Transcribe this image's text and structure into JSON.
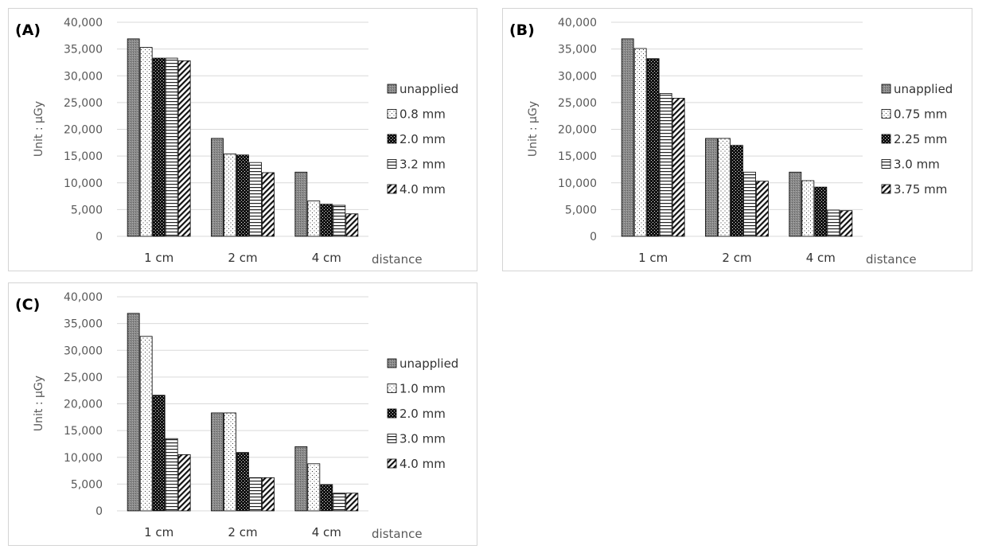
{
  "chart_data": [
    {
      "type": "bar",
      "panel_label": "(A)",
      "ylabel": "Unit : μGy",
      "xlabel": "distance",
      "categories": [
        "1 cm",
        "2 cm",
        "4 cm"
      ],
      "ylim": [
        0,
        40000
      ],
      "yticks": [
        "0",
        "5,000",
        "10,000",
        "15,000",
        "20,000",
        "25,000",
        "30,000",
        "35,000",
        "40,000"
      ],
      "grid": true,
      "legend_position": "right",
      "series": [
        {
          "name": "unapplied",
          "pattern": "solid-dark",
          "values": [
            36900,
            18300,
            12000
          ]
        },
        {
          "name": "0.8 mm",
          "pattern": "dots-light",
          "values": [
            35300,
            15400,
            6600
          ]
        },
        {
          "name": "2.0 mm",
          "pattern": "dots-dark",
          "values": [
            33300,
            15200,
            6000
          ]
        },
        {
          "name": "3.2 mm",
          "pattern": "horizontal",
          "values": [
            33300,
            13800,
            5800
          ]
        },
        {
          "name": "4.0 mm",
          "pattern": "diagonal",
          "values": [
            32800,
            11900,
            4200
          ]
        }
      ]
    },
    {
      "type": "bar",
      "panel_label": "(B)",
      "ylabel": "Unit : μGy",
      "xlabel": "distance",
      "categories": [
        "1 cm",
        "2 cm",
        "4 cm"
      ],
      "ylim": [
        0,
        40000
      ],
      "yticks": [
        "0",
        "5,000",
        "10,000",
        "15,000",
        "20,000",
        "25,000",
        "30,000",
        "35,000",
        "40,000"
      ],
      "grid": true,
      "legend_position": "right",
      "series": [
        {
          "name": "unapplied",
          "pattern": "solid-dark",
          "values": [
            36900,
            18300,
            12000
          ]
        },
        {
          "name": "0.75 mm",
          "pattern": "dots-light",
          "values": [
            35100,
            18300,
            10400
          ]
        },
        {
          "name": "2.25 mm",
          "pattern": "dots-dark",
          "values": [
            33200,
            17000,
            9200
          ]
        },
        {
          "name": "3.0 mm",
          "pattern": "horizontal",
          "values": [
            26700,
            12000,
            4900
          ]
        },
        {
          "name": "3.75 mm",
          "pattern": "diagonal",
          "values": [
            25800,
            10300,
            4800
          ]
        }
      ]
    },
    {
      "type": "bar",
      "panel_label": "(C)",
      "ylabel": "Unit : μGy",
      "xlabel": "distance",
      "categories": [
        "1 cm",
        "2 cm",
        "4 cm"
      ],
      "ylim": [
        0,
        40000
      ],
      "yticks": [
        "0",
        "5,000",
        "10,000",
        "15,000",
        "20,000",
        "25,000",
        "30,000",
        "35,000",
        "40,000"
      ],
      "grid": true,
      "legend_position": "right",
      "series": [
        {
          "name": "unapplied",
          "pattern": "solid-dark",
          "values": [
            36900,
            18300,
            12000
          ]
        },
        {
          "name": "1.0 mm",
          "pattern": "dots-light",
          "values": [
            32600,
            18300,
            8800
          ]
        },
        {
          "name": "2.0 mm",
          "pattern": "dots-dark",
          "values": [
            21600,
            10900,
            4900
          ]
        },
        {
          "name": "3.0 mm",
          "pattern": "horizontal",
          "values": [
            13500,
            6200,
            3300
          ]
        },
        {
          "name": "4.0 mm",
          "pattern": "diagonal",
          "values": [
            10500,
            6200,
            3300
          ]
        }
      ]
    }
  ]
}
